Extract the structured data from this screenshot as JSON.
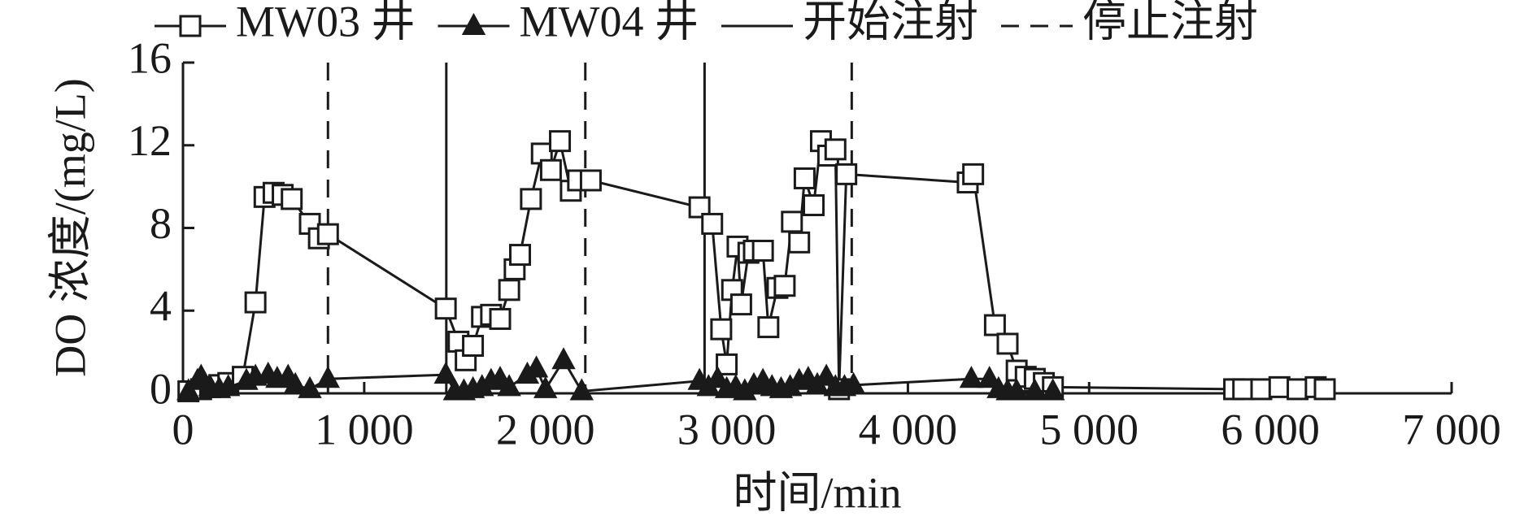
{
  "chart_data": {
    "type": "line",
    "xlabel": "时间/min",
    "ylabel": "DO 浓度/(mg/L)",
    "xlim": [
      0,
      7000
    ],
    "ylim": [
      0,
      16
    ],
    "xticks": [
      0,
      {
        "value": 1000,
        "label": "1 000"
      },
      {
        "value": 2000,
        "label": "2 000"
      },
      {
        "value": 3000,
        "label": "3 000"
      },
      {
        "value": 4000,
        "label": "4 000"
      },
      {
        "value": 5000,
        "label": "5 000"
      },
      {
        "value": 6000,
        "label": "6 000"
      },
      {
        "value": 7000,
        "label": "7 000"
      }
    ],
    "yticks": [
      0,
      4,
      8,
      12,
      16
    ],
    "series": [
      {
        "name": "MW03 井",
        "color": "#1a1a1a",
        "marker": "square",
        "x": [
          30,
          100,
          150,
          200,
          250,
          330,
          400,
          450,
          500,
          550,
          600,
          700,
          750,
          800,
          1450,
          1520,
          1560,
          1600,
          1650,
          1700,
          1750,
          1800,
          1830,
          1860,
          1920,
          1980,
          2030,
          2080,
          2140,
          2180,
          2250,
          2850,
          2920,
          2970,
          3000,
          3030,
          3060,
          3080,
          3120,
          3150,
          3200,
          3230,
          3280,
          3320,
          3360,
          3400,
          3430,
          3480,
          3520,
          3560,
          3600,
          3620,
          3660,
          4330,
          4360,
          4480,
          4550,
          4600,
          4650,
          4700,
          4750,
          4800,
          5800,
          5850,
          5950,
          6050,
          6150,
          6250,
          6300
        ],
        "values": [
          0.1,
          0.2,
          0.3,
          0.4,
          0.5,
          0.8,
          4.4,
          9.5,
          9.7,
          9.6,
          9.4,
          8.2,
          7.5,
          7.7,
          4.1,
          2.5,
          1.6,
          2.3,
          3.7,
          3.8,
          3.6,
          5.0,
          6.0,
          6.7,
          9.4,
          11.6,
          10.8,
          12.2,
          9.8,
          10.3,
          10.3,
          9.0,
          8.2,
          3.1,
          1.4,
          5.0,
          7.1,
          4.3,
          6.8,
          6.9,
          6.9,
          3.2,
          5.1,
          5.2,
          8.3,
          7.3,
          10.4,
          9.1,
          12.2,
          11.5,
          11.8,
          0.2,
          10.6,
          10.2,
          10.6,
          3.3,
          2.4,
          1.1,
          0.8,
          0.7,
          0.5,
          0.3,
          0.2,
          0.2,
          0.2,
          0.3,
          0.2,
          0.3,
          0.2
        ]
      },
      {
        "name": "MW04 井",
        "color": "#1a1a1a",
        "marker": "triangle",
        "x": [
          30,
          80,
          100,
          150,
          200,
          250,
          350,
          400,
          470,
          520,
          580,
          620,
          700,
          800,
          1450,
          1500,
          1550,
          1600,
          1650,
          1700,
          1750,
          1800,
          1900,
          1950,
          2000,
          2100,
          2200,
          2850,
          2900,
          2950,
          3000,
          3050,
          3100,
          3150,
          3200,
          3250,
          3300,
          3350,
          3400,
          3450,
          3500,
          3550,
          3600,
          3650,
          3700,
          4350,
          4450,
          4500,
          4550,
          4600,
          4700,
          4800
        ],
        "values": [
          0.1,
          0.6,
          0.8,
          0.3,
          0.2,
          0.3,
          0.6,
          0.8,
          0.9,
          0.7,
          0.8,
          0.4,
          0.2,
          0.7,
          0.9,
          0.1,
          0.1,
          0.2,
          0.3,
          0.6,
          0.7,
          0.3,
          0.9,
          1.2,
          0.2,
          1.6,
          0.1,
          0.6,
          0.3,
          0.7,
          0.2,
          0.3,
          0.1,
          0.4,
          0.6,
          0.3,
          0.2,
          0.3,
          0.6,
          0.7,
          0.4,
          0.8,
          0.3,
          0.3,
          0.4,
          0.7,
          0.7,
          0.2,
          0.1,
          0.1,
          0.1,
          0.1
        ]
      }
    ],
    "vlines": [
      {
        "name": "开始注射",
        "style": "solid",
        "x": [
          1453,
          2878
        ]
      },
      {
        "name": "停止注射",
        "style": "dashed",
        "x": [
          800,
          2220,
          3690
        ]
      }
    ]
  }
}
